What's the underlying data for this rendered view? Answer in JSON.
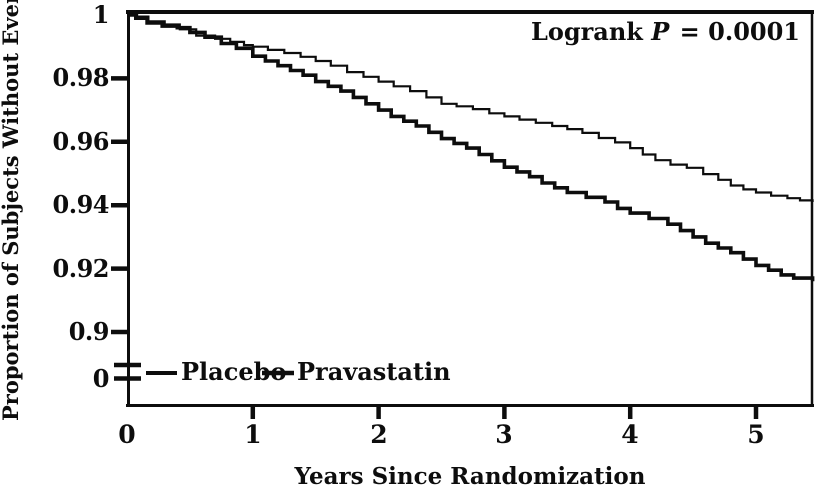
{
  "chart_data": {
    "type": "line",
    "subtype": "kaplan-meier-step",
    "title": "",
    "xlabel": "Years Since Randomization",
    "ylabel": "Proportion of Subjects Without Event",
    "x_tick_labels": [
      "0",
      "1",
      "2",
      "3",
      "4",
      "5"
    ],
    "y_tick_labels": [
      "1",
      "0.98",
      "0.96",
      "0.94",
      "0.92",
      "0.9"
    ],
    "y_break_label": "0",
    "y_axis_break": true,
    "xlim": [
      0,
      5.45
    ],
    "ylim": [
      0.9,
      1.0
    ],
    "grid": false,
    "legend_position": "inside-bottom-left",
    "annotation_parts": {
      "prefix": "Logrank ",
      "symbol": "P",
      "rest": " = 0.0001"
    },
    "annotation_full": "Logrank P = 0.0001",
    "line_color": "#0d0d0d",
    "series": [
      {
        "name": "Placebo",
        "style": "thin",
        "points": [
          [
            0,
            1.0
          ],
          [
            0.08,
            0.9995
          ],
          [
            0.17,
            0.998
          ],
          [
            0.3,
            0.997
          ],
          [
            0.42,
            0.9955
          ],
          [
            0.55,
            0.9935
          ],
          [
            0.7,
            0.9925
          ],
          [
            0.82,
            0.9915
          ],
          [
            0.93,
            0.9905
          ],
          [
            1.0,
            0.99
          ],
          [
            1.12,
            0.989
          ],
          [
            1.25,
            0.988
          ],
          [
            1.38,
            0.9868
          ],
          [
            1.5,
            0.9855
          ],
          [
            1.62,
            0.984
          ],
          [
            1.75,
            0.982
          ],
          [
            1.88,
            0.9805
          ],
          [
            2.0,
            0.979
          ],
          [
            2.12,
            0.9775
          ],
          [
            2.25,
            0.976
          ],
          [
            2.38,
            0.974
          ],
          [
            2.5,
            0.972
          ],
          [
            2.62,
            0.9712
          ],
          [
            2.75,
            0.9703
          ],
          [
            2.88,
            0.969
          ],
          [
            3.0,
            0.968
          ],
          [
            3.12,
            0.967
          ],
          [
            3.25,
            0.966
          ],
          [
            3.38,
            0.965
          ],
          [
            3.5,
            0.964
          ],
          [
            3.62,
            0.9628
          ],
          [
            3.75,
            0.9612
          ],
          [
            3.88,
            0.9598
          ],
          [
            4.0,
            0.958
          ],
          [
            4.1,
            0.956
          ],
          [
            4.2,
            0.9542
          ],
          [
            4.32,
            0.9528
          ],
          [
            4.45,
            0.9518
          ],
          [
            4.58,
            0.9498
          ],
          [
            4.7,
            0.948
          ],
          [
            4.8,
            0.9462
          ],
          [
            4.9,
            0.945
          ],
          [
            5.0,
            0.944
          ],
          [
            5.12,
            0.943
          ],
          [
            5.25,
            0.9422
          ],
          [
            5.35,
            0.9415
          ],
          [
            5.45,
            0.941
          ]
        ]
      },
      {
        "name": "Pravastatin",
        "style": "thick",
        "points": [
          [
            0,
            1.0
          ],
          [
            0.07,
            0.999
          ],
          [
            0.16,
            0.9975
          ],
          [
            0.28,
            0.9965
          ],
          [
            0.4,
            0.996
          ],
          [
            0.5,
            0.9945
          ],
          [
            0.62,
            0.993
          ],
          [
            0.75,
            0.991
          ],
          [
            0.87,
            0.9895
          ],
          [
            1.0,
            0.987
          ],
          [
            1.1,
            0.9855
          ],
          [
            1.2,
            0.984
          ],
          [
            1.3,
            0.9825
          ],
          [
            1.4,
            0.981
          ],
          [
            1.5,
            0.979
          ],
          [
            1.6,
            0.9775
          ],
          [
            1.7,
            0.976
          ],
          [
            1.8,
            0.974
          ],
          [
            1.9,
            0.972
          ],
          [
            2.0,
            0.97
          ],
          [
            2.1,
            0.968
          ],
          [
            2.2,
            0.9665
          ],
          [
            2.3,
            0.965
          ],
          [
            2.4,
            0.963
          ],
          [
            2.5,
            0.961
          ],
          [
            2.6,
            0.9595
          ],
          [
            2.7,
            0.958
          ],
          [
            2.8,
            0.956
          ],
          [
            2.9,
            0.954
          ],
          [
            3.0,
            0.952
          ],
          [
            3.1,
            0.9505
          ],
          [
            3.2,
            0.949
          ],
          [
            3.3,
            0.947
          ],
          [
            3.4,
            0.9455
          ],
          [
            3.5,
            0.944
          ],
          [
            3.65,
            0.9425
          ],
          [
            3.8,
            0.941
          ],
          [
            3.9,
            0.939
          ],
          [
            4.0,
            0.9375
          ],
          [
            4.15,
            0.9358
          ],
          [
            4.3,
            0.934
          ],
          [
            4.4,
            0.932
          ],
          [
            4.5,
            0.93
          ],
          [
            4.6,
            0.928
          ],
          [
            4.7,
            0.9265
          ],
          [
            4.8,
            0.925
          ],
          [
            4.9,
            0.923
          ],
          [
            5.0,
            0.921
          ],
          [
            5.1,
            0.9195
          ],
          [
            5.2,
            0.918
          ],
          [
            5.3,
            0.917
          ],
          [
            5.45,
            0.916
          ]
        ]
      }
    ]
  }
}
